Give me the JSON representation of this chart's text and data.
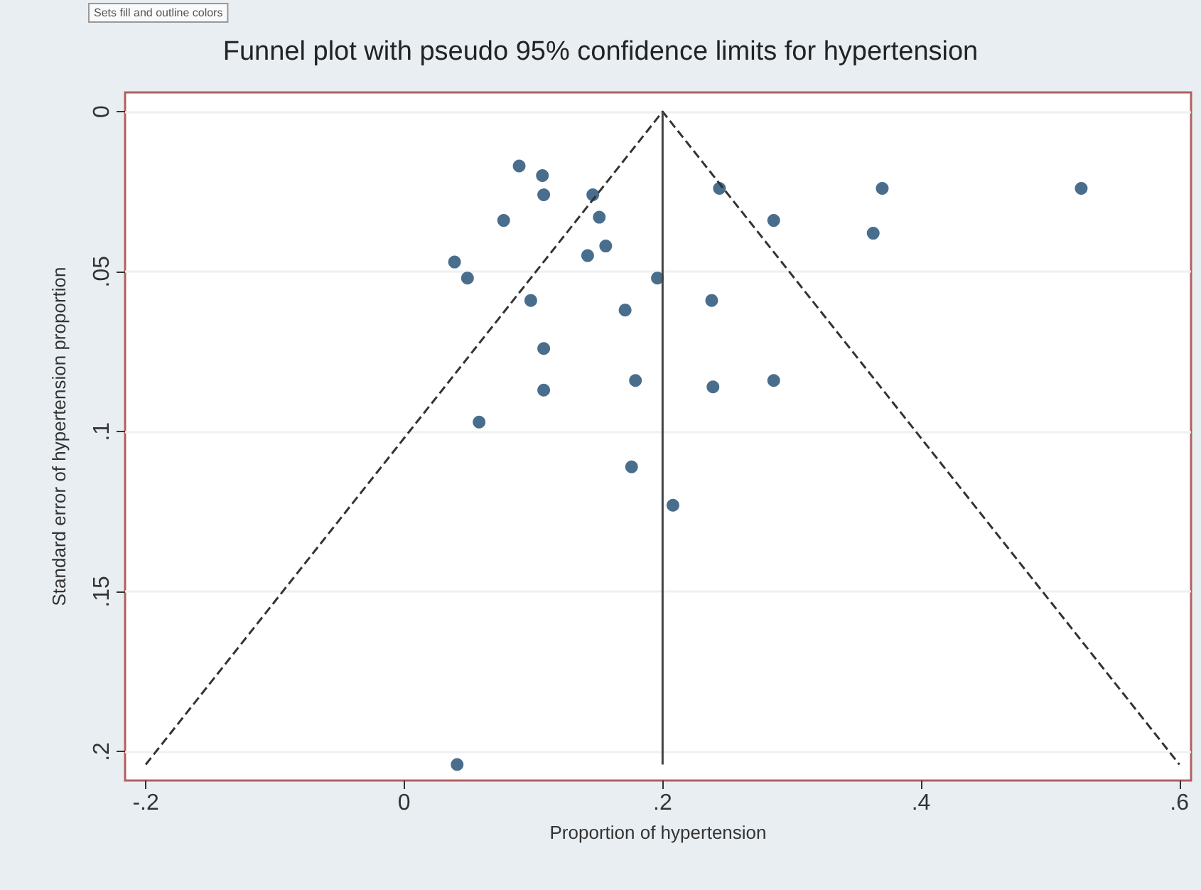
{
  "chart_data": {
    "type": "scatter",
    "title": "Funnel plot with pseudo 95% confidence limits for hypertension",
    "xlabel": "Proportion of hypertension",
    "ylabel": "Standard error of hypertension proportion",
    "annotations": [
      "Sets fill and outline colors"
    ],
    "x": [
      0.089,
      0.107,
      0.108,
      0.146,
      0.077,
      0.151,
      0.156,
      0.142,
      0.039,
      0.049,
      0.196,
      0.098,
      0.171,
      0.238,
      0.244,
      0.286,
      0.108,
      0.108,
      0.179,
      0.239,
      0.286,
      0.058,
      0.176,
      0.37,
      0.363,
      0.524,
      0.208,
      0.041
    ],
    "series": [
      {
        "color": "#1b4a70",
        "marker": "circle",
        "values": [
          0.017,
          0.02,
          0.026,
          0.026,
          0.034,
          0.033,
          0.042,
          0.045,
          0.047,
          0.052,
          0.052,
          0.059,
          0.062,
          0.059,
          0.024,
          0.034,
          0.074,
          0.087,
          0.084,
          0.086,
          0.084,
          0.097,
          0.111,
          0.024,
          0.038,
          0.024,
          0.123,
          0.204
        ]
      },
      {
        "type": "line",
        "color": "#333333",
        "marker": "none",
        "line_style": "dashed",
        "x": [
          -0.2,
          0.2,
          0.6
        ],
        "values": [
          0.204,
          0,
          0.204
        ]
      },
      {
        "type": "line",
        "color": "#444444",
        "marker": "none",
        "line_style": "solid",
        "x": [
          0.2,
          0.2
        ],
        "values": [
          0,
          0.204
        ]
      }
    ],
    "xlim": [
      -0.216,
      0.609
    ],
    "ylim": [
      0.209,
      -0.006
    ],
    "xticks": [
      {
        "value": -0.2,
        "label": "-.2"
      },
      0,
      {
        "value": 0.2,
        "label": ".2"
      },
      {
        "value": 0.4,
        "label": ".4"
      },
      {
        "value": 0.6,
        "label": ".6"
      }
    ],
    "yticks": [
      0,
      {
        "value": 0.05,
        "label": ".05"
      },
      {
        "value": 0.1,
        "label": ".1"
      },
      {
        "value": 0.15,
        "label": ".15"
      },
      {
        "value": 0.2,
        "label": ".2"
      }
    ],
    "grid": "y"
  }
}
